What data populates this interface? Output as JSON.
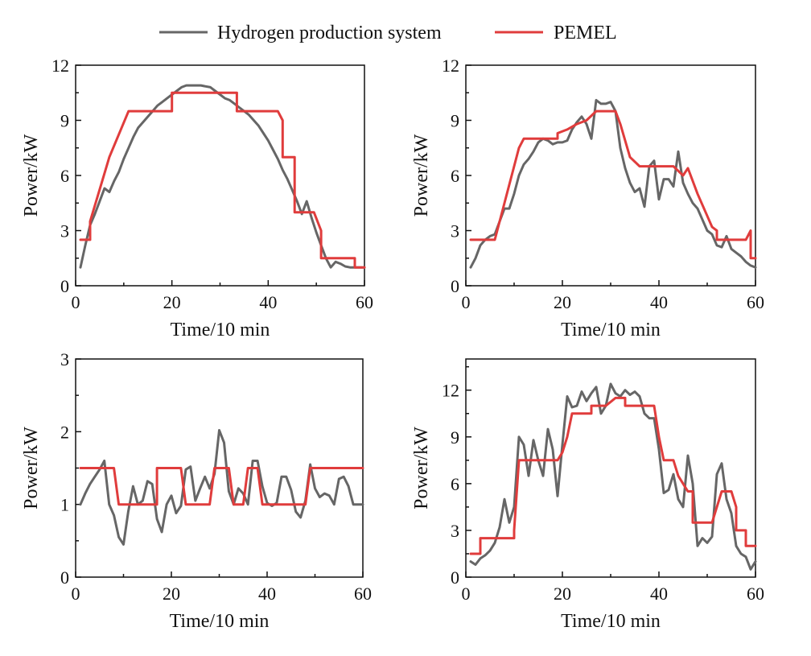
{
  "legend": {
    "items": [
      {
        "label": "Hydrogen production system",
        "color": "#666666"
      },
      {
        "label": "PEMEL",
        "color": "#e03c3c"
      }
    ]
  },
  "chart_data": [
    {
      "type": "line",
      "xlabel": "Time/10 min",
      "ylabel": "Power/kW",
      "xlim": [
        0,
        60
      ],
      "ylim": [
        0,
        12
      ],
      "xticks": [
        0,
        20,
        40,
        60
      ],
      "yticks": [
        0,
        3,
        6,
        9,
        12
      ],
      "grid": false,
      "series": [
        {
          "name": "Hydrogen production system",
          "color": "#666666",
          "x": [
            1,
            2,
            3,
            4,
            5,
            6,
            7,
            8,
            9,
            10,
            11,
            12,
            13,
            14,
            15,
            16,
            17,
            18,
            19,
            20,
            21,
            22,
            23,
            24,
            25,
            26,
            27,
            28,
            29,
            30,
            31,
            32,
            33,
            34,
            35,
            36,
            37,
            38,
            39,
            40,
            41,
            42,
            43,
            44,
            45,
            46,
            47,
            48,
            49,
            50,
            51,
            52,
            53,
            54,
            55,
            56,
            57,
            58,
            59,
            60
          ],
          "y": [
            1.0,
            2.2,
            3.3,
            3.9,
            4.6,
            5.3,
            5.1,
            5.7,
            6.2,
            6.9,
            7.5,
            8.1,
            8.6,
            8.9,
            9.2,
            9.5,
            9.8,
            10.0,
            10.2,
            10.4,
            10.6,
            10.8,
            10.9,
            10.9,
            10.9,
            10.9,
            10.85,
            10.8,
            10.6,
            10.4,
            10.2,
            10.1,
            9.9,
            9.7,
            9.5,
            9.3,
            9.0,
            8.7,
            8.3,
            7.9,
            7.4,
            6.9,
            6.3,
            5.8,
            5.2,
            4.6,
            3.9,
            4.6,
            3.7,
            2.9,
            2.2,
            1.5,
            1.0,
            1.3,
            1.2,
            1.05,
            1.0,
            1.0,
            1.0,
            1.0
          ]
        },
        {
          "name": "PEMEL",
          "color": "#e03c3c",
          "x": [
            1,
            3,
            3,
            7,
            7,
            11,
            11,
            20,
            20,
            33.5,
            33.5,
            42,
            43,
            43,
            45.5,
            45.5,
            49.5,
            49.5,
            51,
            51,
            58,
            58,
            60
          ],
          "y": [
            2.5,
            2.5,
            3.5,
            7.0,
            7.0,
            9.5,
            9.5,
            9.5,
            10.5,
            10.5,
            9.5,
            9.5,
            9.0,
            7.0,
            7.0,
            4.0,
            4.0,
            4.0,
            3.0,
            1.5,
            1.5,
            1.0,
            1.0
          ]
        }
      ]
    },
    {
      "type": "line",
      "xlabel": "Time/10 min",
      "ylabel": "Power/kW",
      "xlim": [
        0,
        60
      ],
      "ylim": [
        0,
        12
      ],
      "xticks": [
        0,
        20,
        40,
        60
      ],
      "yticks": [
        0,
        3,
        6,
        9,
        12
      ],
      "grid": false,
      "series": [
        {
          "name": "Hydrogen production system",
          "color": "#666666",
          "x": [
            1,
            2,
            3,
            4,
            5,
            6,
            7,
            8,
            9,
            10,
            11,
            12,
            13,
            14,
            15,
            16,
            17,
            18,
            19,
            20,
            21,
            22,
            23,
            24,
            25,
            26,
            27,
            28,
            29,
            30,
            31,
            32,
            33,
            34,
            35,
            36,
            37,
            38,
            39,
            40,
            41,
            42,
            43,
            44,
            45,
            46,
            47,
            48,
            49,
            50,
            51,
            52,
            53,
            54,
            55,
            56,
            57,
            58,
            59,
            60
          ],
          "y": [
            1.0,
            1.5,
            2.2,
            2.5,
            2.7,
            2.8,
            3.5,
            4.2,
            4.2,
            5.0,
            6.0,
            6.6,
            6.9,
            7.3,
            7.8,
            8.0,
            7.9,
            7.7,
            7.8,
            7.8,
            7.9,
            8.5,
            8.9,
            9.2,
            8.8,
            8.0,
            10.1,
            9.9,
            9.9,
            10.0,
            9.5,
            7.5,
            6.4,
            5.6,
            5.1,
            5.3,
            4.3,
            6.5,
            6.8,
            4.7,
            5.8,
            5.8,
            5.4,
            7.3,
            5.6,
            5.0,
            4.5,
            4.2,
            3.6,
            3.0,
            2.8,
            2.2,
            2.1,
            2.7,
            2.0,
            1.8,
            1.6,
            1.3,
            1.1,
            1.0
          ]
        },
        {
          "name": "PEMEL",
          "color": "#e03c3c",
          "x": [
            1,
            6,
            8,
            11,
            12,
            19,
            19,
            21,
            21,
            23,
            23,
            25,
            25,
            27,
            27,
            31,
            32,
            34,
            36,
            43,
            45,
            46,
            48,
            50,
            51,
            52,
            52,
            54,
            58,
            59,
            59,
            60
          ],
          "y": [
            2.5,
            2.5,
            4.5,
            7.5,
            8.0,
            8.0,
            8.3,
            8.5,
            8.5,
            8.8,
            8.8,
            9.0,
            9.0,
            9.5,
            9.5,
            9.5,
            8.8,
            7.0,
            6.5,
            6.5,
            6.0,
            6.4,
            5.0,
            3.8,
            3.2,
            3.0,
            2.5,
            2.5,
            2.5,
            3.0,
            1.5,
            1.5
          ]
        }
      ]
    },
    {
      "type": "line",
      "xlabel": "Time/10 min",
      "ylabel": "Power/kW",
      "xlim": [
        0,
        60
      ],
      "ylim": [
        0,
        3
      ],
      "xticks": [
        0,
        20,
        40,
        60
      ],
      "yticks": [
        0,
        1,
        2,
        3
      ],
      "grid": false,
      "series": [
        {
          "name": "Hydrogen production system",
          "color": "#666666",
          "x": [
            1,
            2,
            3,
            4,
            5,
            6,
            7,
            8,
            9,
            10,
            11,
            12,
            13,
            14,
            15,
            16,
            17,
            18,
            19,
            20,
            21,
            22,
            23,
            24,
            25,
            26,
            27,
            28,
            29,
            30,
            31,
            32,
            33,
            34,
            35,
            36,
            37,
            38,
            39,
            40,
            41,
            42,
            43,
            44,
            45,
            46,
            47,
            48,
            49,
            50,
            51,
            52,
            53,
            54,
            55,
            56,
            57,
            58,
            59,
            60
          ],
          "y": [
            1.0,
            1.15,
            1.28,
            1.38,
            1.48,
            1.6,
            1.0,
            0.85,
            0.55,
            0.45,
            0.9,
            1.25,
            1.0,
            1.05,
            1.32,
            1.28,
            0.8,
            0.62,
            1.0,
            1.12,
            0.88,
            0.98,
            1.48,
            1.52,
            1.05,
            1.22,
            1.38,
            1.22,
            1.42,
            2.02,
            1.85,
            1.18,
            1.0,
            1.22,
            1.15,
            1.0,
            1.6,
            1.6,
            1.25,
            1.02,
            0.98,
            1.02,
            1.38,
            1.38,
            1.2,
            0.9,
            0.82,
            1.05,
            1.55,
            1.22,
            1.1,
            1.15,
            1.12,
            1.0,
            1.35,
            1.38,
            1.25,
            1.0,
            1.0,
            1.0
          ]
        },
        {
          "name": "PEMEL",
          "color": "#e03c3c",
          "x": [
            1,
            8,
            9,
            17,
            17,
            22,
            23,
            26,
            27,
            28,
            29,
            32,
            33,
            35,
            36,
            38,
            39,
            48,
            49,
            60
          ],
          "y": [
            1.5,
            1.5,
            1.0,
            1.0,
            1.5,
            1.5,
            1.0,
            1.0,
            1.0,
            1.0,
            1.5,
            1.5,
            1.0,
            1.0,
            1.5,
            1.5,
            1.0,
            1.0,
            1.5,
            1.5
          ]
        }
      ]
    },
    {
      "type": "line",
      "xlabel": "Time/10 min",
      "ylabel": "Power/kW",
      "xlim": [
        0,
        60
      ],
      "ylim": [
        0,
        14
      ],
      "xticks": [
        0,
        20,
        40,
        60
      ],
      "yticks": [
        0,
        3,
        6,
        9,
        12
      ],
      "grid": false,
      "series": [
        {
          "name": "Hydrogen production system",
          "color": "#666666",
          "x": [
            1,
            2,
            3,
            4,
            5,
            6,
            7,
            8,
            9,
            10,
            11,
            12,
            13,
            14,
            15,
            16,
            17,
            18,
            19,
            20,
            21,
            22,
            23,
            24,
            25,
            26,
            27,
            28,
            29,
            30,
            31,
            32,
            33,
            34,
            35,
            36,
            37,
            38,
            39,
            40,
            41,
            42,
            43,
            44,
            45,
            46,
            47,
            48,
            49,
            50,
            51,
            52,
            53,
            54,
            55,
            56,
            57,
            58,
            59,
            60
          ],
          "y": [
            1.0,
            0.8,
            1.2,
            1.4,
            1.7,
            2.2,
            3.2,
            5.0,
            3.5,
            4.5,
            9.0,
            8.5,
            6.5,
            8.8,
            7.5,
            6.5,
            9.5,
            8.2,
            5.2,
            8.5,
            11.6,
            10.9,
            11.0,
            11.9,
            11.3,
            11.8,
            12.2,
            10.5,
            11.0,
            12.4,
            11.8,
            11.6,
            12.0,
            11.7,
            11.9,
            11.6,
            10.5,
            10.2,
            10.2,
            8.2,
            5.4,
            5.6,
            6.6,
            5.0,
            4.5,
            7.8,
            6.0,
            2.0,
            2.5,
            2.2,
            2.6,
            6.6,
            7.3,
            5.0,
            4.1,
            2.0,
            1.5,
            1.3,
            0.5,
            1.0
          ]
        },
        {
          "name": "PEMEL",
          "color": "#e03c3c",
          "x": [
            1,
            3,
            3,
            9,
            10,
            10,
            11,
            19,
            20,
            21,
            22,
            26,
            26,
            29,
            29,
            31,
            31,
            33,
            33,
            35,
            35,
            39,
            40,
            41,
            43,
            44,
            45,
            46,
            47,
            47,
            51,
            52,
            53,
            55,
            56,
            56,
            58,
            58,
            60
          ],
          "y": [
            1.5,
            1.5,
            2.5,
            2.5,
            2.5,
            3.0,
            7.5,
            7.5,
            8.0,
            9.0,
            10.5,
            10.5,
            11.0,
            11.0,
            11.0,
            11.5,
            11.5,
            11.5,
            11.0,
            11.0,
            11.0,
            11.0,
            9.0,
            7.5,
            7.5,
            6.5,
            6.0,
            5.5,
            5.5,
            3.5,
            3.5,
            4.5,
            5.5,
            5.5,
            4.5,
            3.0,
            3.0,
            2.0,
            2.0
          ]
        }
      ]
    }
  ]
}
